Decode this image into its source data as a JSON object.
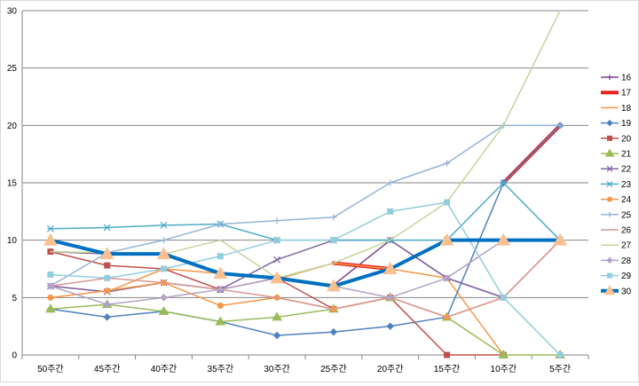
{
  "chart_data": {
    "type": "line",
    "title": "",
    "xlabel": "",
    "ylabel": "",
    "ylim": [
      0,
      30
    ],
    "y_ticks": [
      0,
      5,
      10,
      15,
      20,
      25,
      30
    ],
    "grid": "horizontal",
    "legend_position": "right",
    "categories": [
      "50주간",
      "45주간",
      "40주간",
      "35주간",
      "30주간",
      "25주간",
      "20주간",
      "15주간",
      "10주간",
      "5주간"
    ],
    "series": [
      {
        "name": "16",
        "color": "#7b3f8f",
        "marker": "plus",
        "width": 1.5,
        "values": [
          9,
          8.8,
          8.8,
          7.1,
          6.7,
          6.1,
          10,
          6.7,
          5,
          null
        ]
      },
      {
        "name": "17",
        "color": "#e8221f",
        "marker": "none",
        "width": 4,
        "values": [
          null,
          null,
          null,
          null,
          null,
          8,
          7.5,
          null,
          15,
          20
        ]
      },
      {
        "name": "18",
        "color": "#f79646",
        "marker": "none",
        "width": 1.5,
        "values": [
          6,
          5.5,
          7.5,
          7.1,
          6.6,
          8,
          7.5,
          6.7,
          0,
          null
        ]
      },
      {
        "name": "19",
        "color": "#4f81bd",
        "marker": "diamond",
        "width": 1.5,
        "values": [
          4,
          3.3,
          3.8,
          2.9,
          1.7,
          2,
          2.5,
          3.3,
          15,
          20
        ]
      },
      {
        "name": "20",
        "color": "#c0504d",
        "marker": "square",
        "width": 1.5,
        "values": [
          9,
          7.8,
          7.5,
          5.7,
          6.7,
          4,
          5,
          0,
          0,
          null
        ]
      },
      {
        "name": "21",
        "color": "#9bbb59",
        "marker": "triangle",
        "width": 1.5,
        "values": [
          4,
          4.4,
          3.8,
          2.9,
          3.3,
          4,
          5,
          3.3,
          0,
          0
        ]
      },
      {
        "name": "22",
        "color": "#8064a2",
        "marker": "cross",
        "width": 1.5,
        "values": [
          6,
          5.5,
          6.3,
          5.7,
          8.3,
          10,
          10,
          6.7,
          5,
          null
        ]
      },
      {
        "name": "23",
        "color": "#4bacc6",
        "marker": "star",
        "width": 1.5,
        "values": [
          11,
          11.1,
          11.3,
          11.4,
          10,
          10,
          10,
          10,
          15,
          10
        ]
      },
      {
        "name": "24",
        "color": "#f79646",
        "marker": "circle",
        "width": 1.5,
        "values": [
          5,
          5.6,
          6.3,
          4.3,
          5,
          4,
          5,
          3.3,
          5,
          10
        ]
      },
      {
        "name": "25",
        "color": "#95b3d7",
        "marker": "plus",
        "width": 1.5,
        "values": [
          6,
          8.9,
          10,
          11.4,
          11.7,
          12,
          15,
          16.7,
          20,
          20
        ]
      },
      {
        "name": "26",
        "color": "#d99694",
        "marker": "none",
        "width": 1.5,
        "values": [
          6,
          6.7,
          6.3,
          5.7,
          5,
          4,
          5,
          3.3,
          5,
          10
        ]
      },
      {
        "name": "27",
        "color": "#c3d69b",
        "marker": "none",
        "width": 1.5,
        "values": [
          9,
          8.9,
          8.8,
          10,
          6.7,
          8,
          10,
          13.3,
          20,
          30
        ]
      },
      {
        "name": "28",
        "color": "#b3a2c7",
        "marker": "diamond",
        "width": 1.5,
        "values": [
          6,
          4.4,
          5,
          5.7,
          6.7,
          6,
          5,
          6.7,
          10,
          10
        ]
      },
      {
        "name": "29",
        "color": "#93cddd",
        "marker": "square",
        "width": 1.5,
        "values": [
          7,
          6.7,
          7.5,
          8.6,
          10,
          10,
          12.5,
          13.3,
          5,
          0
        ]
      },
      {
        "name": "30",
        "color": "#0070c0",
        "marker": "triangle",
        "marker_color": "#fac090",
        "width": 4,
        "values": [
          10,
          8.8,
          8.8,
          7.1,
          6.7,
          6,
          7.5,
          10,
          10,
          10
        ]
      }
    ]
  }
}
